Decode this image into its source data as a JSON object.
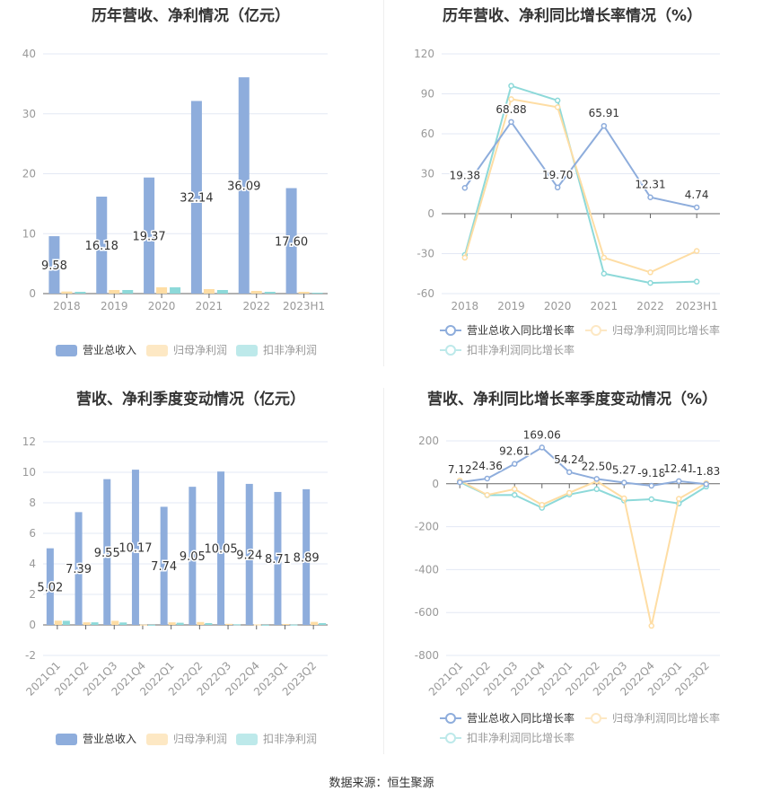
{
  "colors": {
    "revenue": "#8eaddc",
    "profit": "#fedda4",
    "deducted": "#8dd9d9",
    "profit_legend": "#fde8c4",
    "deducted_legend": "#bde9ea",
    "grid": "#e3e8f4",
    "axis": "#666666",
    "tick": "#999999"
  },
  "footer": "数据来源：恒生聚源",
  "chart_data": [
    {
      "type": "bar",
      "title": "历年营收、净利情况（亿元）",
      "categories": [
        "2018",
        "2019",
        "2020",
        "2021",
        "2022",
        "2023H1"
      ],
      "ylim": [
        0,
        40
      ],
      "yticks": [
        0,
        10,
        20,
        30,
        40
      ],
      "series": [
        {
          "name": "营业总收入",
          "values": [
            9.58,
            16.18,
            19.37,
            32.14,
            36.09,
            17.6
          ],
          "labels": [
            "9.58",
            "16.18",
            "19.37",
            "32.14",
            "36.09",
            "17.60"
          ]
        },
        {
          "name": "归母净利润",
          "values": [
            0.35,
            0.6,
            1.05,
            0.75,
            0.45,
            0.3
          ]
        },
        {
          "name": "扣非净利润",
          "values": [
            0.3,
            0.6,
            1.05,
            0.6,
            0.3,
            0.15
          ]
        }
      ],
      "legend": "bottom"
    },
    {
      "type": "line",
      "title": "历年营收、净利同比增长率情况（%）",
      "categories": [
        "2018",
        "2019",
        "2020",
        "2021",
        "2022",
        "2023H1"
      ],
      "ylim": [
        -60,
        120
      ],
      "yticks": [
        -60,
        -30,
        0,
        30,
        60,
        90,
        120
      ],
      "series": [
        {
          "name": "营业总收入同比增长率",
          "values": [
            19.38,
            68.88,
            19.7,
            65.91,
            12.31,
            4.74
          ],
          "labels": [
            "19.38",
            "68.88",
            "19.70",
            "65.91",
            "12.31",
            "4.74"
          ]
        },
        {
          "name": "归母净利润同比增长率",
          "values": [
            -33,
            86,
            80,
            -33,
            -44,
            -28
          ]
        },
        {
          "name": "扣非净利润同比增长率",
          "values": [
            -31,
            96,
            85,
            -45,
            -52,
            -51
          ]
        }
      ],
      "legend": "bottom"
    },
    {
      "type": "bar",
      "title": "营收、净利季度变动情况（亿元）",
      "categories": [
        "2021Q1",
        "2021Q2",
        "2021Q3",
        "2021Q4",
        "2022Q1",
        "2022Q2",
        "2022Q3",
        "2022Q4",
        "2023Q1",
        "2023Q2"
      ],
      "ylim": [
        -2,
        12
      ],
      "yticks": [
        -2,
        0,
        2,
        4,
        6,
        8,
        10,
        12
      ],
      "series": [
        {
          "name": "营业总收入",
          "values": [
            5.02,
            7.39,
            9.55,
            10.17,
            7.74,
            9.05,
            10.05,
            9.24,
            8.71,
            8.89
          ],
          "labels": [
            "5.02",
            "7.39",
            "9.55",
            "10.17",
            "7.74",
            "9.05",
            "10.05",
            "9.24",
            "8.71",
            "8.89"
          ]
        },
        {
          "name": "归母净利润",
          "values": [
            0.28,
            0.17,
            0.27,
            0.02,
            0.17,
            0.19,
            0.07,
            0.03,
            0.06,
            0.2
          ]
        },
        {
          "name": "扣非净利润",
          "values": [
            0.27,
            0.17,
            0.16,
            0.01,
            0.14,
            0.12,
            0.04,
            0.01,
            0.02,
            0.12
          ]
        }
      ],
      "legend": "bottom"
    },
    {
      "type": "line",
      "title": "营收、净利同比增长率季度变动情况（%）",
      "categories": [
        "2021Q1",
        "2021Q2",
        "2021Q3",
        "2021Q4",
        "2022Q1",
        "2022Q2",
        "2022Q3",
        "2022Q4",
        "2023Q1",
        "2023Q2"
      ],
      "ylim": [
        -800,
        200
      ],
      "yticks": [
        -800,
        -600,
        -400,
        -200,
        0,
        200
      ],
      "series": [
        {
          "name": "营业总收入同比增长率",
          "values": [
            7.12,
            24.36,
            92.61,
            169.06,
            54.24,
            22.5,
            5.27,
            -9.18,
            12.41,
            -1.83
          ],
          "labels": [
            "7.12",
            "24.36",
            "92.61",
            "169.06",
            "54.24",
            "22.50",
            "5.27",
            "-9.18",
            "12.41",
            "-1.83"
          ]
        },
        {
          "name": "归母净利润同比增长率",
          "values": [
            15,
            -52,
            -25,
            -98,
            -42,
            12,
            -68,
            -662,
            -70,
            3
          ]
        },
        {
          "name": "扣非净利润同比增长率",
          "values": [
            8,
            -53,
            -52,
            -112,
            -50,
            -25,
            -78,
            -72,
            -92,
            -13
          ]
        }
      ],
      "legend": "bottom"
    }
  ]
}
